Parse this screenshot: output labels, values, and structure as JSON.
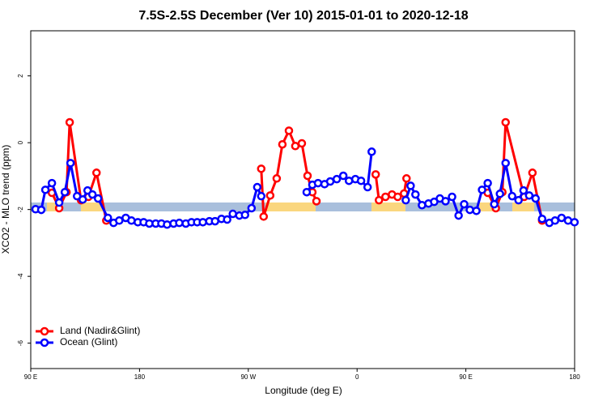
{
  "chart_data": {
    "type": "line",
    "title": "7.5S-2.5S December (Ver 10)   2015-01-01 to 2020-12-18",
    "x_label": "Longitude (deg E)",
    "y_label": "XCO2 - MLO trend (ppm)",
    "xlim": [
      90,
      540
    ],
    "xticks": [
      {
        "value": 90,
        "label": "90 E"
      },
      {
        "value": 180,
        "label": "180"
      },
      {
        "value": 270,
        "label": "90 W"
      },
      {
        "value": 360,
        "label": "0"
      },
      {
        "value": 450,
        "label": "90 E"
      },
      {
        "value": 540,
        "label": "180"
      }
    ],
    "ylim": [
      -6.76,
      3.35
    ],
    "yticks": [
      2,
      0,
      -2,
      -4,
      -6
    ],
    "legend": "bottom-left",
    "series": [
      {
        "name": "Land (Nadir&Glint)",
        "color": "#ff0000",
        "x": [
          107.5,
          113.5,
          119.6,
          122.2,
          131.6,
          137.7,
          144.4,
          152.5,
          null,
          280.7,
          282.7,
          288.1,
          293.5,
          298.2,
          303.6,
          308.9,
          314.3,
          319.0,
          323.0,
          326.4,
          null,
          375.4,
          378.1,
          383.5,
          388.9,
          393.6,
          398.9,
          400.9,
          null,
          468.1,
          474.8,
          480.2,
          482.9,
          498.3,
          505.1,
          513.1
        ],
        "values": [
          -1.5,
          -1.96,
          -1.48,
          0.61,
          -1.72,
          -1.62,
          -0.9,
          -2.33,
          null,
          -0.78,
          -2.21,
          -1.58,
          -1.07,
          -0.05,
          0.36,
          -0.1,
          -0.02,
          -0.99,
          -1.48,
          -1.75,
          null,
          -0.95,
          -1.72,
          -1.62,
          -1.55,
          -1.62,
          -1.52,
          -1.07,
          null,
          -1.5,
          -1.96,
          -1.48,
          0.61,
          -1.62,
          -0.9,
          -2.33
        ]
      },
      {
        "name": "Ocean (Glint)",
        "color": "#0000ff",
        "x": [
          94.0,
          98.7,
          102.1,
          107.5,
          113.5,
          118.2,
          122.9,
          128.3,
          133.0,
          137.0,
          141.0,
          145.7,
          153.8,
          158.5,
          163.2,
          168.6,
          173.3,
          178.6,
          183.4,
          188.1,
          193.4,
          198.1,
          202.8,
          208.2,
          212.9,
          218.3,
          223.0,
          227.7,
          232.4,
          237.8,
          242.5,
          247.8,
          252.5,
          257.2,
          262.6,
          267.3,
          272.7,
          277.4,
          280.7,
          null,
          318.3,
          323.0,
          327.7,
          333.1,
          337.8,
          343.2,
          348.6,
          353.3,
          358.6,
          363.3,
          368.7,
          372.1,
          null,
          400.3,
          404.3,
          408.3,
          413.7,
          419.1,
          423.8,
          428.5,
          433.2,
          438.6,
          444.0,
          448.6,
          453.3,
          458.7,
          463.4,
          468.1,
          473.5,
          478.2,
          482.9,
          488.3,
          493.6,
          497.7,
          502.4,
          507.7,
          513.1,
          519.1,
          523.8,
          529.2,
          534.6,
          539.9
        ],
        "values": [
          -1.99,
          -2.01,
          -1.41,
          -1.21,
          -1.79,
          -1.48,
          -0.61,
          -1.6,
          -1.7,
          -1.43,
          -1.55,
          -1.67,
          -2.25,
          -2.4,
          -2.33,
          -2.25,
          -2.33,
          -2.38,
          -2.38,
          -2.42,
          -2.42,
          -2.42,
          -2.45,
          -2.42,
          -2.4,
          -2.42,
          -2.38,
          -2.38,
          -2.38,
          -2.35,
          -2.35,
          -2.28,
          -2.3,
          -2.13,
          -2.18,
          -2.16,
          -1.96,
          -1.33,
          -1.6,
          null,
          -1.48,
          -1.26,
          -1.21,
          -1.24,
          -1.16,
          -1.09,
          -0.99,
          -1.14,
          -1.09,
          -1.14,
          -1.33,
          -0.27,
          null,
          -1.72,
          -1.29,
          -1.55,
          -1.87,
          -1.82,
          -1.77,
          -1.67,
          -1.75,
          -1.62,
          -2.18,
          -1.84,
          -2.01,
          -2.04,
          -1.41,
          -1.21,
          -1.84,
          -1.53,
          -0.61,
          -1.6,
          -1.72,
          -1.43,
          -1.58,
          -1.67,
          -2.28,
          -2.4,
          -2.33,
          -2.25,
          -2.33,
          -2.38
        ]
      }
    ]
  }
}
